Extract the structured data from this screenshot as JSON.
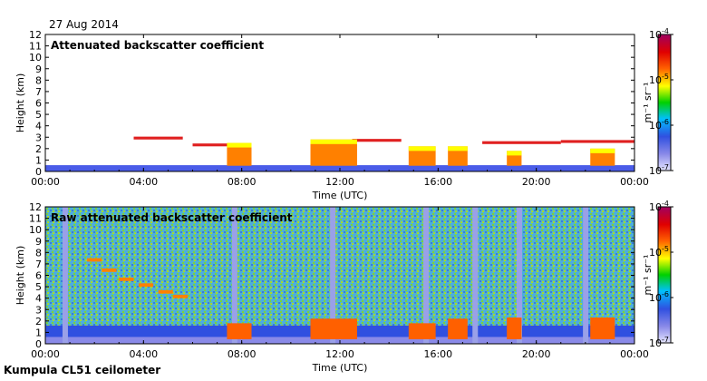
{
  "header": {
    "date": "27 Aug 2014"
  },
  "footer": {
    "instrument": "Kumpula CL51 ceilometer"
  },
  "colors": {
    "background_blue": "#3050e0",
    "low": "#8a8ae8",
    "mid_low": "#00c0ff",
    "mid": "#00d000",
    "mid_high": "#ffff00",
    "high": "#ff6000",
    "top": "#a00020"
  },
  "chart_data": [
    {
      "type": "heatmap",
      "title": "Attenuated backscatter coefficient",
      "xlabel": "Time (UTC)",
      "ylabel": "Height (km)",
      "x_ticks": [
        "00:00",
        "04:00",
        "08:00",
        "12:00",
        "16:00",
        "20:00",
        "00:00"
      ],
      "y_ticks": [
        "0",
        "1",
        "2",
        "3",
        "4",
        "5",
        "6",
        "7",
        "8",
        "9",
        "10",
        "11",
        "12"
      ],
      "xlim_hours": [
        0,
        24
      ],
      "ylim_km": [
        0,
        12
      ],
      "colorbar": {
        "label": "m⁻¹ sr⁻¹",
        "scale": "log",
        "ticks": [
          "10^-7",
          "10^-6",
          "10^-5",
          "10^-4"
        ],
        "tick_labels": [
          {
            "base": "10",
            "exp": "-7"
          },
          {
            "base": "10",
            "exp": "-6"
          },
          {
            "base": "10",
            "exp": "-5"
          },
          {
            "base": "10",
            "exp": "-4"
          }
        ]
      }
    },
    {
      "type": "heatmap",
      "title": "Raw attenuated backscatter coefficient",
      "xlabel": "Time (UTC)",
      "ylabel": "Height (km)",
      "x_ticks": [
        "00:00",
        "04:00",
        "08:00",
        "12:00",
        "16:00",
        "20:00",
        "00:00"
      ],
      "y_ticks": [
        "0",
        "1",
        "2",
        "3",
        "4",
        "5",
        "6",
        "7",
        "8",
        "9",
        "10",
        "11",
        "12"
      ],
      "xlim_hours": [
        0,
        24
      ],
      "ylim_km": [
        0,
        12
      ],
      "colorbar": {
        "label": "m⁻¹ sr⁻¹",
        "scale": "log",
        "ticks": [
          "10^-7",
          "10^-6",
          "10^-5",
          "10^-4"
        ],
        "tick_labels": [
          {
            "base": "10",
            "exp": "-7"
          },
          {
            "base": "10",
            "exp": "-6"
          },
          {
            "base": "10",
            "exp": "-5"
          },
          {
            "base": "10",
            "exp": "-4"
          }
        ]
      }
    }
  ]
}
